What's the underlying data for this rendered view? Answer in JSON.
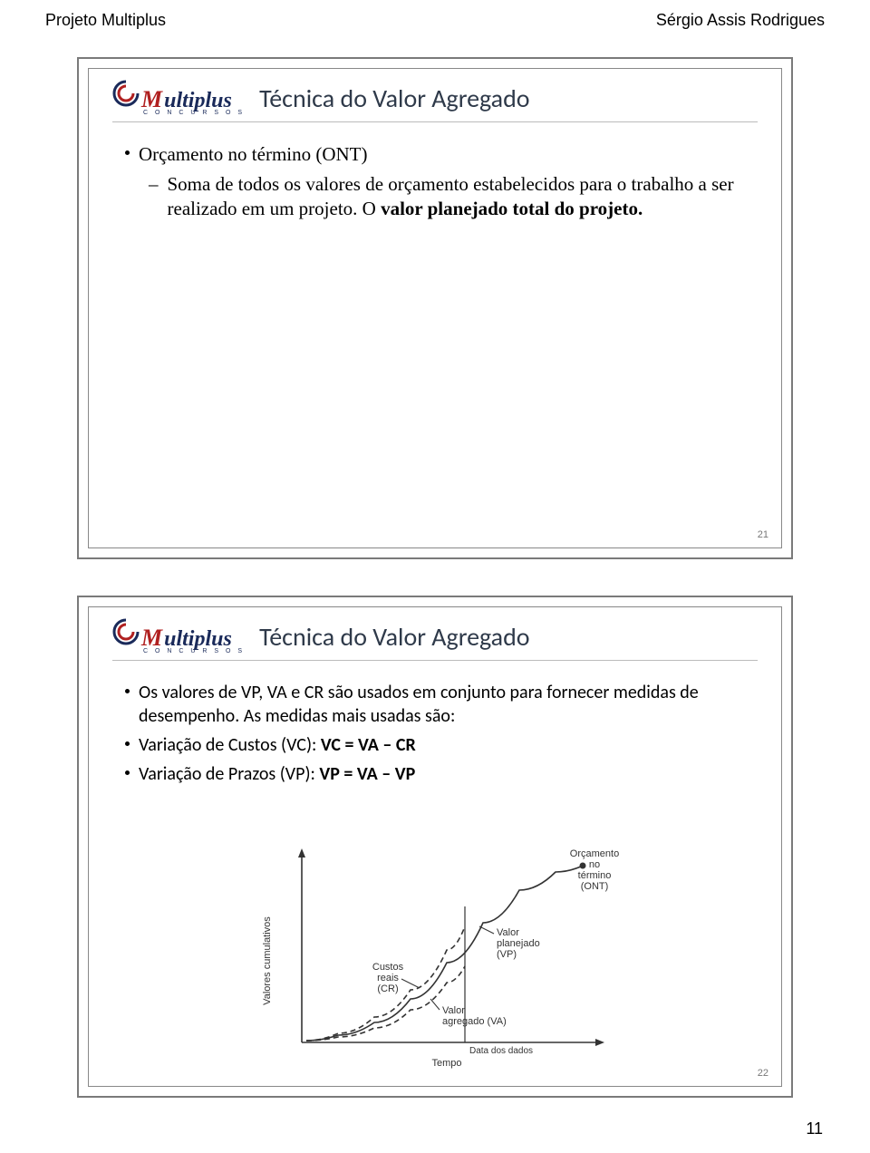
{
  "header": {
    "left": "Projeto Multiplus",
    "right": "Sérgio Assis Rodrigues"
  },
  "logo": {
    "m": "M",
    "rest": "ultiplus",
    "sub": "C O N C U R S O S",
    "swirl_outer_color": "#1a2a5a",
    "swirl_inner_color": "#b02020"
  },
  "slide1": {
    "title": "Técnica do Valor Agregado",
    "bullet": "Orçamento no término (ONT)",
    "sub_line1": "Soma de todos os valores de orçamento estabelecidos para o trabalho a ser realizado em um projeto. O ",
    "sub_line1_bold": "valor planejado total do projeto.",
    "number": "21"
  },
  "slide2": {
    "title": "Técnica do Valor Agregado",
    "bullet1_a": "Os valores de VP, VA e CR são usados em conjunto para fornecer medidas de desempenho. As medidas mais usadas são:",
    "bullet2_a": "Variação de Custos (VC): ",
    "bullet2_b": "VC = VA – CR",
    "bullet3_a": "Variação de Prazos (VP): ",
    "bullet3_b": "VP = VA – VP",
    "number": "22"
  },
  "chart": {
    "y_label": "Valores cumulativos",
    "x_label": "Tempo",
    "label_cr": "Custos\nreais\n(CR)",
    "label_vp": "Valor\nplanejado\n(VP)",
    "label_va": "Valor\nagregado (VA)",
    "label_ont": "Orçamento\nno\ntérmino\n(ONT)",
    "label_dd": "Data dos dados",
    "colors": {
      "axis": "#333333",
      "line": "#333333",
      "dash": "#555555",
      "text": "#333333",
      "bg": "#ffffff"
    },
    "font_size": 11,
    "axis_range_x": [
      0,
      320
    ],
    "axis_range_y": [
      0,
      200
    ],
    "data_date_x": 180,
    "vp_curve": [
      [
        5,
        2
      ],
      [
        40,
        8
      ],
      [
        80,
        22
      ],
      [
        120,
        48
      ],
      [
        160,
        88
      ],
      [
        200,
        132
      ],
      [
        240,
        168
      ],
      [
        280,
        188
      ],
      [
        310,
        195
      ]
    ],
    "cr_curve": [
      [
        5,
        2
      ],
      [
        40,
        10
      ],
      [
        80,
        28
      ],
      [
        120,
        58
      ],
      [
        160,
        102
      ],
      [
        180,
        128
      ]
    ],
    "va_curve": [
      [
        5,
        2
      ],
      [
        40,
        6
      ],
      [
        80,
        16
      ],
      [
        120,
        36
      ],
      [
        160,
        66
      ],
      [
        180,
        84
      ]
    ],
    "ont_point": [
      310,
      195
    ]
  },
  "page_number": "11"
}
